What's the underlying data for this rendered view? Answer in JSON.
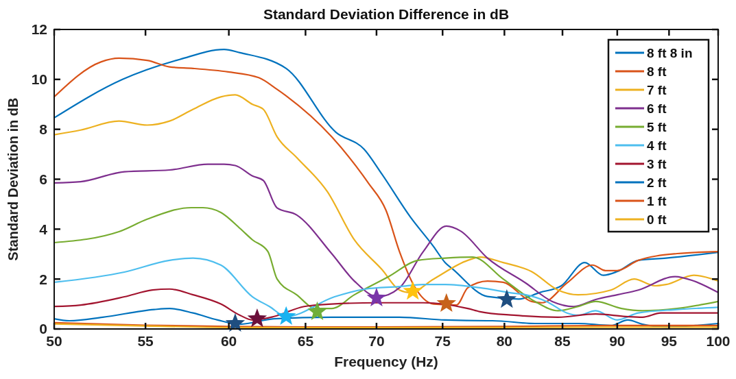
{
  "chart_data": {
    "type": "line",
    "title": "Standard Deviation Difference in dB",
    "xlabel": "Frequency (Hz)",
    "ylabel": "Standard Deviation in dB",
    "log": "x",
    "xlim": [
      50,
      100
    ],
    "xticks": [
      50,
      55,
      60,
      65,
      70,
      75,
      80,
      85,
      90,
      95,
      100
    ],
    "ylim": [
      0,
      12
    ],
    "yticks": [
      0,
      2,
      4,
      6,
      8,
      10,
      12
    ],
    "grid": false,
    "legend": "top right",
    "marker": "none",
    "line_style": "solid",
    "series": [
      {
        "name": "8 ft 8 in",
        "color": "#0072bd",
        "x": [
          50.0,
          53.7,
          57.0,
          59.7,
          60.7,
          63.7,
          67.1,
          69.1,
          70.4,
          72.5,
          74.3,
          75.2,
          75.8,
          78.6,
          81.2,
          83.0,
          84.9,
          87.0,
          88.7,
          90.0,
          92.0,
          94.7,
          100
        ],
        "values": [
          8.46,
          10.0,
          10.8,
          11.2,
          11.07,
          10.44,
          7.88,
          7.2,
          6.2,
          4.5,
          3.3,
          2.66,
          2.4,
          1.3,
          1.2,
          1.46,
          1.73,
          2.66,
          2.15,
          2.3,
          2.75,
          2.84,
          3.07
        ]
      },
      {
        "name": "8 ft",
        "color": "#d95319",
        "x": [
          50.0,
          52.5,
          53.5,
          55.1,
          56.4,
          57.8,
          59.95,
          61.9,
          63.1,
          63.7,
          66.8,
          69.4,
          70.7,
          71.7,
          72.8,
          74.3,
          76.1,
          77.0,
          78.6,
          79.9,
          82.3,
          83.2,
          85.4,
          87.7,
          88.9,
          90.0,
          92.0,
          95.8,
          100
        ],
        "values": [
          9.3,
          10.7,
          10.85,
          10.76,
          10.5,
          10.44,
          10.3,
          10.07,
          9.6,
          9.34,
          7.7,
          5.85,
          4.75,
          3.1,
          1.73,
          1.0,
          0.96,
          1.65,
          1.92,
          1.87,
          1.1,
          1.05,
          1.84,
          2.56,
          2.34,
          2.34,
          2.75,
          3.02,
          3.1
        ]
      },
      {
        "name": "7 ft",
        "color": "#edb120",
        "x": [
          50.0,
          51.4,
          53.5,
          55.1,
          56.4,
          57.8,
          59.5,
          60.4,
          61.5,
          62.2,
          63.1,
          64.4,
          66.5,
          68.4,
          70.4,
          71.7,
          72.5,
          74.3,
          77.0,
          78.0,
          79.9,
          82.3,
          84.6,
          86.4,
          89.4,
          91.6,
          93.6,
          94.7,
          97.5,
          100
        ],
        "values": [
          7.78,
          7.97,
          8.33,
          8.17,
          8.33,
          8.8,
          9.3,
          9.38,
          9.0,
          8.8,
          7.7,
          6.87,
          5.5,
          3.57,
          2.38,
          1.56,
          1.46,
          2.0,
          2.75,
          2.88,
          2.66,
          2.3,
          1.56,
          1.37,
          1.56,
          2.0,
          1.73,
          1.78,
          2.15,
          1.92
        ]
      },
      {
        "name": "6 ft",
        "color": "#7e2f8e",
        "x": [
          50.0,
          51.4,
          53.8,
          56.4,
          58.7,
          59.7,
          60.4,
          61.5,
          62.2,
          63.1,
          64.4,
          66.8,
          68.4,
          70.1,
          71.7,
          73.5,
          75.3,
          76.4,
          78.6,
          81.8,
          84.1,
          86.0,
          88.0,
          90.0,
          92.0,
          95.6,
          97.5,
          100
        ],
        "values": [
          5.85,
          5.9,
          6.3,
          6.37,
          6.6,
          6.6,
          6.55,
          6.13,
          5.95,
          4.85,
          4.57,
          3.02,
          1.92,
          1.29,
          1.65,
          3.1,
          4.12,
          3.93,
          2.84,
          1.84,
          1.1,
          0.9,
          1.18,
          1.37,
          1.56,
          2.1,
          1.92,
          1.46
        ]
      },
      {
        "name": "5 ft",
        "color": "#77ac30",
        "x": [
          50.0,
          53.5,
          55.1,
          57.7,
          58.4,
          59.5,
          60.7,
          61.5,
          62.5,
          63.1,
          64.4,
          65.7,
          66.8,
          68.4,
          70.9,
          73.1,
          75.2,
          77.4,
          79.9,
          82.6,
          84.6,
          86.4,
          88.0,
          90.4,
          92.4,
          95.8,
          100
        ],
        "values": [
          3.46,
          3.9,
          4.4,
          4.86,
          4.86,
          4.67,
          4.03,
          3.57,
          3.1,
          2.0,
          1.37,
          0.82,
          0.82,
          1.37,
          2.1,
          2.75,
          2.84,
          2.88,
          2.0,
          1.1,
          0.73,
          0.9,
          1.1,
          0.82,
          0.73,
          0.82,
          1.1
        ]
      },
      {
        "name": "4 ft",
        "color": "#4dbeee",
        "x": [
          50.0,
          53.8,
          56.4,
          57.8,
          59.5,
          61.5,
          62.6,
          63.7,
          67.0,
          69.2,
          71.7,
          73.5,
          75.2,
          78.0,
          80.8,
          81.8,
          83.6,
          85.4,
          86.4,
          88.0,
          90.0,
          92.0,
          95.8,
          100
        ],
        "values": [
          1.87,
          2.28,
          2.75,
          2.84,
          2.56,
          1.29,
          0.9,
          0.5,
          1.29,
          1.6,
          1.7,
          1.78,
          1.78,
          1.65,
          1.43,
          1.37,
          1.1,
          0.64,
          0.55,
          0.73,
          0.36,
          0.64,
          0.78,
          0.87
        ]
      },
      {
        "name": "3 ft",
        "color": "#a2142f",
        "x": [
          50.0,
          51.4,
          53.8,
          55.4,
          56.4,
          57.8,
          59.5,
          60.7,
          61.5,
          62.9,
          64.9,
          66.8,
          70.1,
          73.5,
          77.0,
          78.0,
          80.8,
          84.6,
          88.0,
          90.8,
          92.4,
          94.2,
          100
        ],
        "values": [
          0.9,
          0.96,
          1.29,
          1.56,
          1.6,
          1.37,
          1.0,
          0.55,
          0.36,
          0.5,
          0.9,
          1.0,
          1.05,
          1.05,
          0.82,
          0.69,
          0.55,
          0.47,
          0.6,
          0.5,
          0.47,
          0.64,
          0.64
        ]
      },
      {
        "name": "2 ft",
        "color": "#0072bd",
        "x": [
          50.0,
          50.8,
          52.6,
          55.5,
          56.4,
          57.8,
          59.3,
          60.7,
          62.9,
          66.8,
          71.7,
          75.2,
          78.6,
          79.0,
          82.6,
          86.4,
          89.4,
          91.0,
          92.4,
          94.7,
          100
        ],
        "values": [
          0.41,
          0.33,
          0.47,
          0.78,
          0.82,
          0.64,
          0.36,
          0.19,
          0.41,
          0.47,
          0.47,
          0.36,
          0.33,
          0.33,
          0.22,
          0.22,
          0.14,
          0.36,
          0.19,
          0.08,
          0.22
        ]
      },
      {
        "name": "1 ft",
        "color": "#d95319",
        "x": [
          50.0,
          55.0,
          60.0,
          65.0,
          70.0,
          80.0,
          90.0,
          100
        ],
        "values": [
          0.25,
          0.15,
          0.1,
          0.08,
          0.08,
          0.1,
          0.14,
          0.14
        ]
      },
      {
        "name": "0 ft",
        "color": "#edb120",
        "x": [
          50.0,
          55.0,
          60.0,
          65.0,
          70.0,
          80.0,
          90.0,
          100
        ],
        "values": [
          0.2,
          0.12,
          0.06,
          0.05,
          0.05,
          0.06,
          0.07,
          0.07
        ]
      },
      {
        "type": "scatter",
        "marker": "star",
        "x": [
          60.4,
          61.8,
          63.7,
          65.8,
          70.0,
          72.7,
          75.3,
          80.2
        ],
        "values": [
          0.22,
          0.41,
          0.5,
          0.69,
          1.24,
          1.51,
          1.02,
          1.18
        ],
        "colors": [
          "#1f4e80",
          "#6b0f3a",
          "#19b2f0",
          "#6fae3a",
          "#7a35a8",
          "#ffc20e",
          "#c7621a",
          "#1f4e80"
        ]
      }
    ]
  }
}
